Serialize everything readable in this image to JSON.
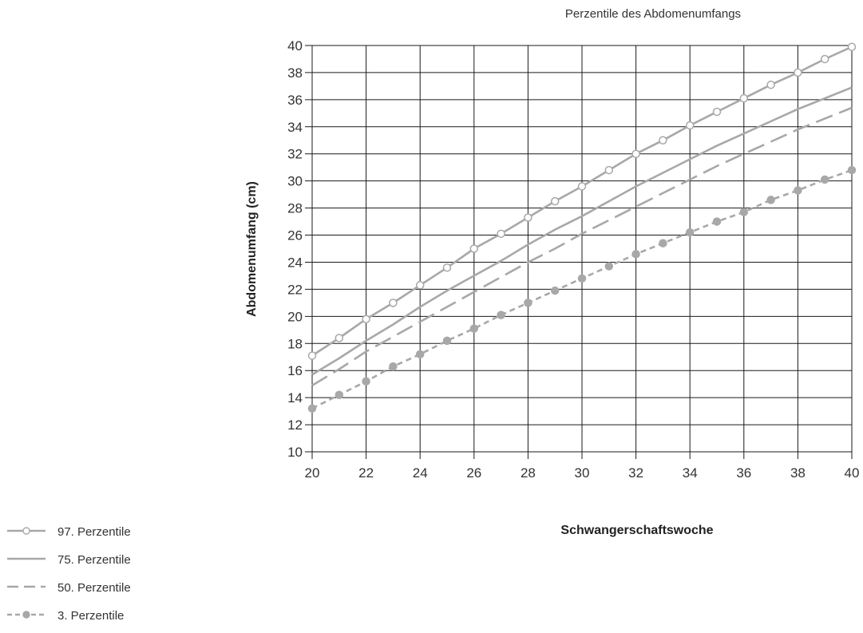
{
  "chart_data": {
    "type": "line",
    "title": "Perzentile des Abdomenumfangs",
    "xlabel": "Schwangerschaftswoche",
    "ylabel": "Abdomenumfang (cm)",
    "xlim": [
      20,
      40
    ],
    "ylim": [
      10,
      40
    ],
    "x_ticks": [
      20,
      22,
      24,
      26,
      28,
      30,
      32,
      34,
      36,
      38,
      40
    ],
    "y_ticks": [
      10,
      12,
      14,
      16,
      18,
      20,
      22,
      24,
      26,
      28,
      30,
      32,
      34,
      36,
      38,
      40
    ],
    "grid": true,
    "legend_position": "bottom-left",
    "x": [
      20,
      21,
      22,
      23,
      24,
      25,
      26,
      27,
      28,
      29,
      30,
      31,
      32,
      33,
      34,
      35,
      36,
      37,
      38,
      39,
      40
    ],
    "series": [
      {
        "name": "97. Perzentile",
        "style": "solid-open-circles",
        "color": "#a8a8a8",
        "values": [
          17.1,
          18.4,
          19.8,
          21.0,
          22.3,
          23.6,
          25.0,
          26.1,
          27.3,
          28.5,
          29.6,
          30.8,
          32.0,
          33.0,
          34.1,
          35.1,
          36.1,
          37.1,
          38.0,
          39.0,
          39.9
        ]
      },
      {
        "name": "75. Perzentile",
        "style": "solid",
        "color": "#a8a8a8",
        "values": [
          15.7,
          16.9,
          18.2,
          19.4,
          20.7,
          21.9,
          23.0,
          24.1,
          25.3,
          26.4,
          27.4,
          28.5,
          29.6,
          30.6,
          31.6,
          32.6,
          33.5,
          34.4,
          35.3,
          36.1,
          36.9
        ]
      },
      {
        "name": "50. Perzentile",
        "style": "dashed",
        "color": "#a8a8a8",
        "values": [
          14.9,
          16.1,
          17.4,
          18.5,
          19.6,
          20.7,
          21.8,
          22.9,
          24.0,
          25.0,
          26.1,
          27.1,
          28.1,
          29.1,
          30.1,
          31.1,
          32.0,
          32.9,
          33.8,
          34.6,
          35.4
        ]
      },
      {
        "name": "3. Perzentile",
        "style": "dashed-filled-circles",
        "color": "#a8a8a8",
        "values": [
          13.2,
          14.2,
          15.2,
          16.3,
          17.2,
          18.2,
          19.1,
          20.1,
          21.0,
          21.9,
          22.8,
          23.7,
          24.6,
          25.4,
          26.2,
          27.0,
          27.7,
          28.6,
          29.3,
          30.1,
          30.8
        ]
      }
    ]
  }
}
